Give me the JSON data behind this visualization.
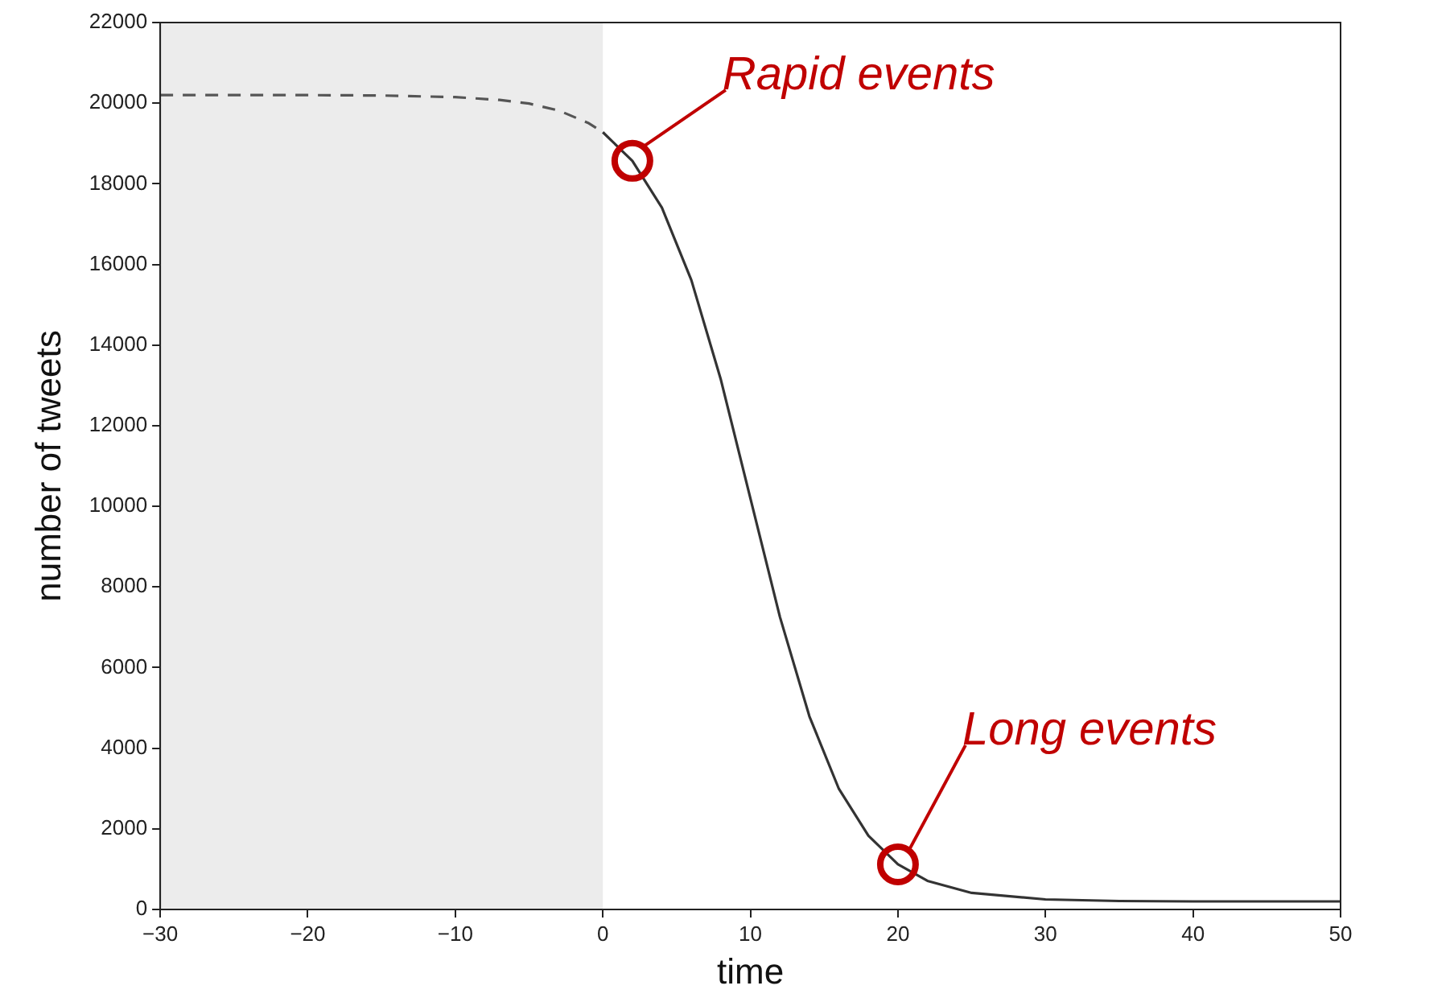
{
  "chart_data": {
    "type": "line",
    "xlabel": "time",
    "ylabel": "number of tweets",
    "xlim": [
      -30,
      50
    ],
    "xticks": [
      {
        "value": -30,
        "label": "−30"
      },
      {
        "value": -20,
        "label": "−20"
      },
      {
        "value": -10,
        "label": "−10"
      },
      0,
      10,
      20,
      30,
      40,
      50
    ],
    "ylim": [
      0,
      22000
    ],
    "yticks": [
      0,
      2000,
      4000,
      6000,
      8000,
      10000,
      12000,
      14000,
      16000,
      18000,
      20000,
      22000
    ],
    "grid": false,
    "legend": false,
    "marker": "none",
    "series": [
      {
        "color": "#555555",
        "line_style": "dashed",
        "x": [
          -30,
          -25,
          -20,
          -15,
          -10,
          -7,
          -5,
          -3,
          -1,
          0
        ],
        "values": [
          20200,
          20200,
          20200,
          20190,
          20150,
          20080,
          19990,
          19820,
          19510,
          19280
        ]
      },
      {
        "color": "#333333",
        "line_style": "solid",
        "x": [
          0,
          2,
          4,
          6,
          8,
          10,
          12,
          14,
          16,
          18,
          20,
          22,
          25,
          30,
          35,
          40,
          50
        ],
        "values": [
          19280,
          18570,
          17410,
          15610,
          13140,
          10200,
          7260,
          4790,
          2990,
          1830,
          1120,
          710,
          410,
          250,
          210,
          200,
          200
        ]
      }
    ],
    "bands": [
      {
        "axis": "x",
        "from": -30,
        "to": 0,
        "color": "#ececec"
      }
    ],
    "annotations": [
      {
        "text": "Rapid events",
        "x": 2,
        "y": 18570
      },
      {
        "text": "Long events",
        "x": 20,
        "y": 1120
      }
    ]
  }
}
